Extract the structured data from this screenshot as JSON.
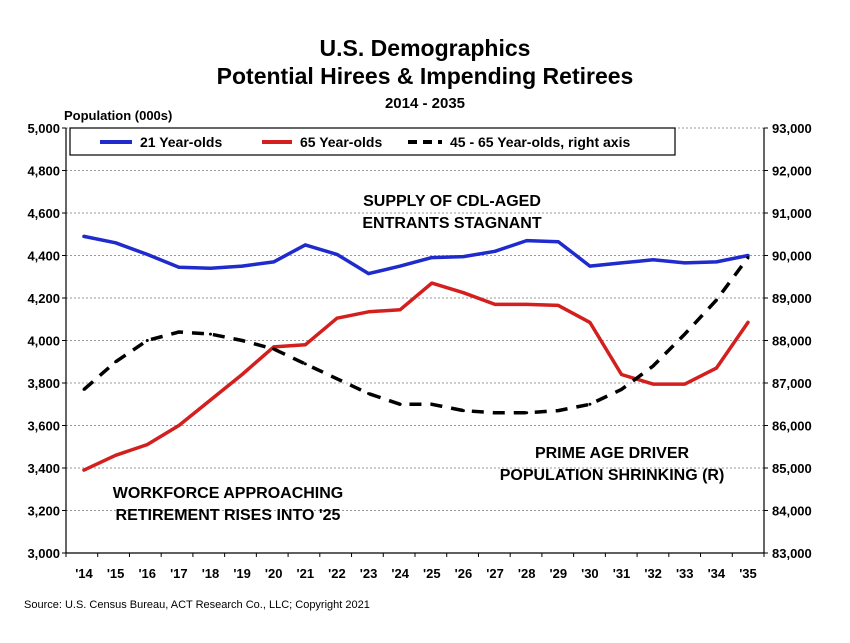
{
  "chart_data": {
    "type": "line",
    "title": "U.S. Demographics",
    "subtitle": "Potential Hirees & Impending Retirees",
    "date_range": "2014 - 2035",
    "left_axis_label": "Population (000s)",
    "categories": [
      "'14",
      "'15",
      "'16",
      "'17",
      "'18",
      "'19",
      "'20",
      "'21",
      "'22",
      "'23",
      "'24",
      "'25",
      "'26",
      "'27",
      "'28",
      "'29",
      "'30",
      "'31",
      "'32",
      "'33",
      "'34",
      "'35"
    ],
    "left_ticks": [
      "3,000",
      "3,200",
      "3,400",
      "3,600",
      "3,800",
      "4,000",
      "4,200",
      "4,400",
      "4,600",
      "4,800",
      "5,000"
    ],
    "right_ticks": [
      "83,000",
      "84,000",
      "85,000",
      "86,000",
      "87,000",
      "88,000",
      "89,000",
      "90,000",
      "91,000",
      "92,000",
      "93,000"
    ],
    "ylim_left": [
      3000,
      5000
    ],
    "ylim_right": [
      83000,
      93000
    ],
    "grid": true,
    "legend_position": "top",
    "series": [
      {
        "name": "21 Year-olds",
        "axis": "left",
        "color": "#1f2bcc",
        "style": "solid",
        "values": [
          4490,
          4460,
          4405,
          4345,
          4340,
          4350,
          4370,
          4450,
          4405,
          4315,
          4350,
          4390,
          4395,
          4420,
          4470,
          4465,
          4350,
          4365,
          4380,
          4365,
          4370,
          4400
        ]
      },
      {
        "name": "65 Year-olds",
        "axis": "left",
        "color": "#d41f1f",
        "style": "solid",
        "values": [
          3390,
          3460,
          3510,
          3600,
          3720,
          3840,
          3970,
          3980,
          4105,
          4135,
          4145,
          4270,
          4225,
          4170,
          4170,
          4165,
          4085,
          3840,
          3795,
          3795,
          3870,
          4085
        ]
      },
      {
        "name": "45 - 65 Year-olds, right axis",
        "axis": "right",
        "color": "#000000",
        "style": "dashed",
        "values": [
          86850,
          87500,
          88000,
          88200,
          88150,
          88000,
          87800,
          87450,
          87100,
          86750,
          86500,
          86500,
          86350,
          86300,
          86300,
          86350,
          86500,
          86850,
          87400,
          88150,
          88950,
          89950
        ]
      }
    ],
    "annotations": {
      "supply_line1": "SUPPLY OF CDL-AGED",
      "supply_line2": "ENTRANTS STAGNANT",
      "prime_line1": "PRIME AGE DRIVER",
      "prime_line2": "POPULATION SHRINKING (R)",
      "workforce_line1": "WORKFORCE APPROACHING",
      "workforce_line2": "RETIREMENT RISES INTO '25"
    },
    "source": "Source: U.S. Census Bureau, ACT Research Co., LLC; Copyright 2021"
  }
}
